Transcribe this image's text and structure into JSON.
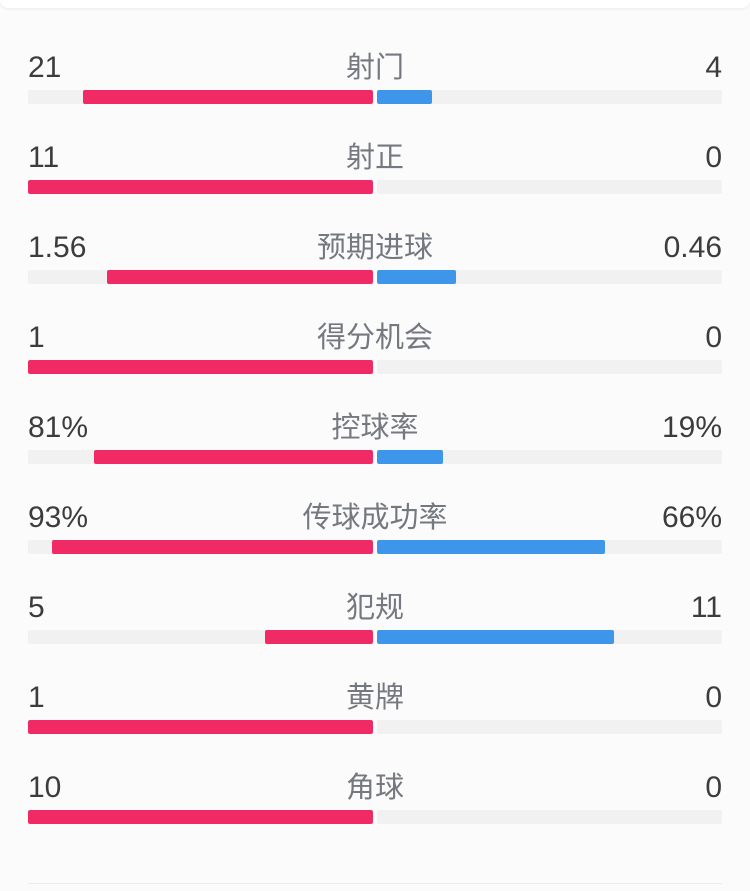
{
  "chart_data": {
    "type": "bar",
    "layout": "paired-horizontal-diverging-from-center",
    "title": "",
    "categories": [
      "射门",
      "射正",
      "预期进球",
      "得分机会",
      "控球率",
      "传球成功率",
      "犯规",
      "黄牌",
      "角球"
    ],
    "series": [
      {
        "name": "left",
        "color": "#f02a64",
        "values": [
          21,
          11,
          1.56,
          1,
          81,
          93,
          5,
          1,
          10
        ],
        "display": [
          "21",
          "11",
          "1.56",
          "1",
          "81%",
          "93%",
          "5",
          "1",
          "10"
        ]
      },
      {
        "name": "right",
        "color": "#3d96ea",
        "values": [
          4,
          0,
          0.46,
          0,
          19,
          66,
          11,
          0,
          0
        ],
        "display": [
          "4",
          "0",
          "0.46",
          "0",
          "19%",
          "66%",
          "11",
          "0",
          "0"
        ]
      }
    ],
    "legend": false,
    "grid": false,
    "bar_scaling": "percent rows scaled by value/100; count rows scaled by value/(left+right)"
  },
  "rows": [
    {
      "label": "射门",
      "home": "21",
      "away": "4"
    },
    {
      "label": "射正",
      "home": "11",
      "away": "0"
    },
    {
      "label": "预期进球",
      "home": "1.56",
      "away": "0.46"
    },
    {
      "label": "得分机会",
      "home": "1",
      "away": "0"
    },
    {
      "label": "控球率",
      "home": "81%",
      "away": "19%"
    },
    {
      "label": "传球成功率",
      "home": "93%",
      "away": "66%"
    },
    {
      "label": "犯规",
      "home": "5",
      "away": "11"
    },
    {
      "label": "黄牌",
      "home": "1",
      "away": "0"
    },
    {
      "label": "角球",
      "home": "10",
      "away": "0"
    }
  ],
  "colors": {
    "home_bar": "#f02a64",
    "away_bar": "#3d96ea",
    "bar_track": "#f1f1f2",
    "value_text": "#3c3c3c",
    "label_text": "#75797f",
    "divider": "#ececec",
    "background": "#fbfbfb"
  }
}
